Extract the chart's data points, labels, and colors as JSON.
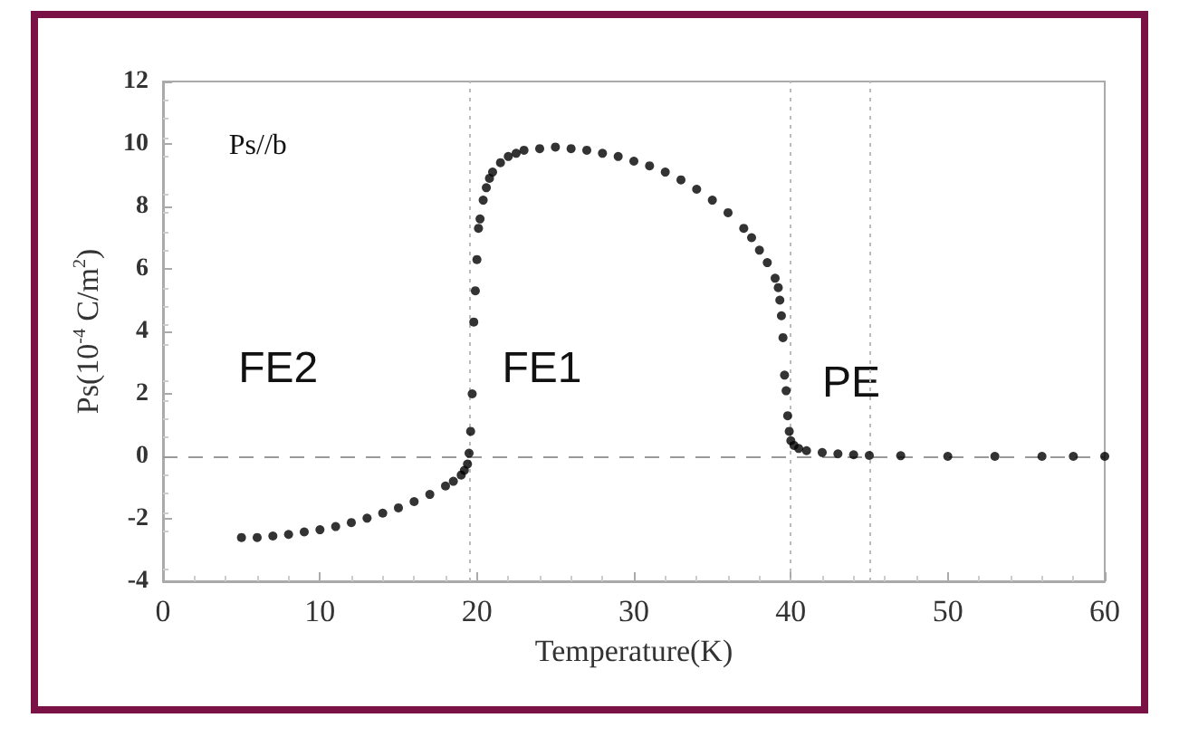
{
  "chart_data": {
    "type": "scatter",
    "xlabel": "Temperature(K)",
    "ylabel": "Ps(10$^{-4}$ C/m$^{2}$)",
    "annotations": [
      "Ps//b",
      "FE2",
      "FE1",
      "PE"
    ],
    "xlim": [
      0,
      60
    ],
    "xticks": [
      0,
      10,
      20,
      30,
      40,
      50,
      60
    ],
    "ylim": [
      -4,
      12
    ],
    "yticks": [
      -4,
      -2,
      0,
      2,
      4,
      6,
      8,
      10,
      12
    ],
    "grid": false,
    "marker": "circle",
    "ref_lines": [
      {
        "axis": "y",
        "value": 0,
        "color": "#999999",
        "line_style": "dashed"
      },
      {
        "axis": "x",
        "value": 19.5,
        "color": "#bbbbbb",
        "line_style": "dotted"
      },
      {
        "axis": "x",
        "value": 40,
        "color": "#bbbbbb",
        "line_style": "dotted"
      },
      {
        "axis": "x",
        "value": 45,
        "color": "#bbbbbb",
        "line_style": "dotted"
      }
    ],
    "series": [
      {
        "color": "#000000",
        "x": [
          5,
          6,
          7,
          8,
          9,
          10,
          11,
          12,
          13,
          14,
          15,
          16,
          17,
          18,
          18.5,
          19,
          19.2,
          19.4,
          19.5,
          19.6,
          19.7,
          19.8,
          19.9,
          20,
          20.1,
          20.2,
          20.4,
          20.6,
          20.8,
          21,
          21.5,
          22,
          22.5,
          23,
          24,
          25,
          26,
          27,
          28,
          29,
          30,
          31,
          32,
          33,
          34,
          35,
          36,
          37,
          37.5,
          38,
          38.5,
          39,
          39.2,
          39.3,
          39.4,
          39.5,
          39.6,
          39.7,
          39.8,
          39.9,
          40,
          40.2,
          40.5,
          41,
          42,
          43,
          44,
          45,
          47,
          50,
          53,
          56,
          58,
          60
        ],
        "values": [
          -2.6,
          -2.6,
          -2.55,
          -2.5,
          -2.42,
          -2.35,
          -2.25,
          -2.12,
          -1.98,
          -1.82,
          -1.65,
          -1.45,
          -1.22,
          -0.95,
          -0.8,
          -0.6,
          -0.45,
          -0.25,
          0.1,
          0.8,
          2.0,
          4.3,
          5.3,
          6.3,
          7.3,
          7.6,
          8.2,
          8.6,
          8.9,
          9.1,
          9.4,
          9.6,
          9.7,
          9.8,
          9.85,
          9.9,
          9.85,
          9.8,
          9.7,
          9.6,
          9.45,
          9.3,
          9.1,
          8.85,
          8.55,
          8.2,
          7.8,
          7.3,
          7.0,
          6.6,
          6.2,
          5.7,
          5.4,
          5.0,
          4.5,
          3.8,
          2.6,
          2.1,
          1.3,
          0.8,
          0.5,
          0.35,
          0.25,
          0.18,
          0.12,
          0.08,
          0.05,
          0.03,
          0.02,
          0,
          0,
          0,
          0,
          0
        ]
      }
    ]
  }
}
